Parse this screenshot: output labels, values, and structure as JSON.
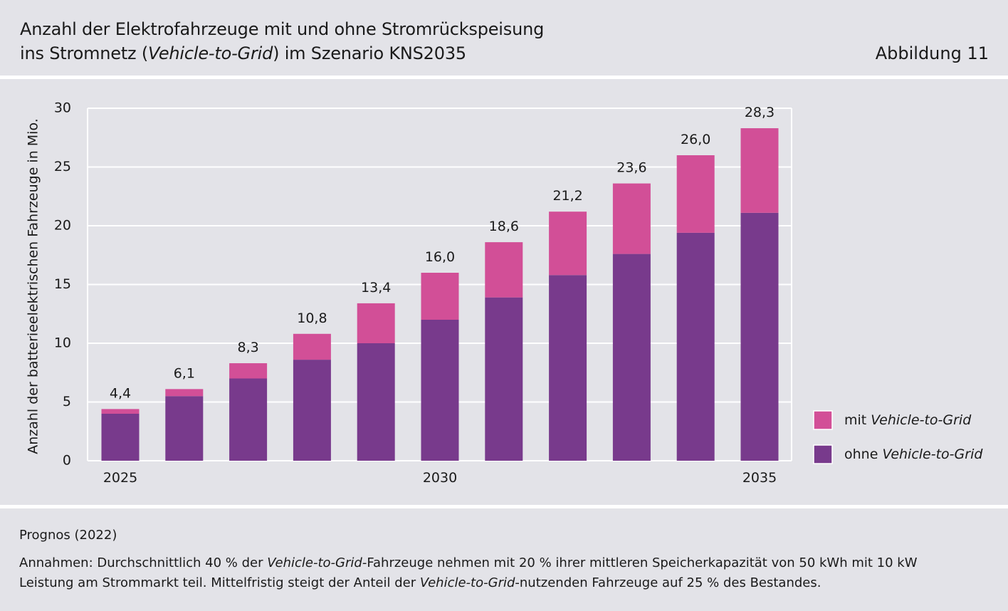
{
  "header": {
    "title_line1": "Anzahl der Elektrofahrzeuge mit und ohne Stromrückspeisung",
    "title_line2_pre": "ins Stromnetz (",
    "title_line2_em": "Vehicle-to-Grid",
    "title_line2_post": ") im Szenario KNS2035",
    "figure_label": "Abbildung 11"
  },
  "footer": {
    "source": "Prognos (2022)",
    "note_1": "Annahmen: Durchschnittlich 40 % der ",
    "note_em1": "Vehicle-to-Grid",
    "note_2": "-Fahrzeuge nehmen mit 20 % ihrer mittleren Speicherkapazität von 50 kWh mit 10 kW Leistung am Strommarkt teil. Mittelfristig steigt der Anteil der ",
    "note_em2": "Vehicle-to-Grid",
    "note_3": "-nutzenden Fahrzeuge auf 25 % des Bestandes."
  },
  "chart_data": {
    "type": "bar",
    "stacked": true,
    "ylabel": "Anzahl der batterieelektrischen Fahrzeuge in Mio.",
    "ylim": [
      0,
      30
    ],
    "yticks": [
      0,
      5,
      10,
      15,
      20,
      25,
      30
    ],
    "categories": [
      "2025",
      "2026",
      "2027",
      "2028",
      "2029",
      "2030",
      "2031",
      "2032",
      "2033",
      "2034",
      "2035"
    ],
    "category_labels_shown": [
      "2025",
      "",
      "",
      "",
      "",
      "2030",
      "",
      "",
      "",
      "",
      "2035"
    ],
    "series": [
      {
        "name_pre": "ohne ",
        "name_em": "Vehicle-to-Grid",
        "color": "#783a8c",
        "values": [
          4.0,
          5.5,
          7.0,
          8.6,
          10.0,
          12.0,
          13.9,
          15.8,
          17.6,
          19.4,
          21.1
        ]
      },
      {
        "name_pre": "mit ",
        "name_em": "Vehicle-to-Grid",
        "color": "#d24f97",
        "values": [
          0.4,
          0.6,
          1.3,
          2.2,
          3.4,
          4.0,
          4.7,
          5.4,
          6.0,
          6.6,
          7.2
        ]
      }
    ],
    "totals": [
      "4,4",
      "6,1",
      "8,3",
      "10,8",
      "13,4",
      "16,0",
      "18,6",
      "21,2",
      "23,6",
      "26,0",
      "28,3"
    ],
    "grid": true,
    "legend_position": "right"
  }
}
